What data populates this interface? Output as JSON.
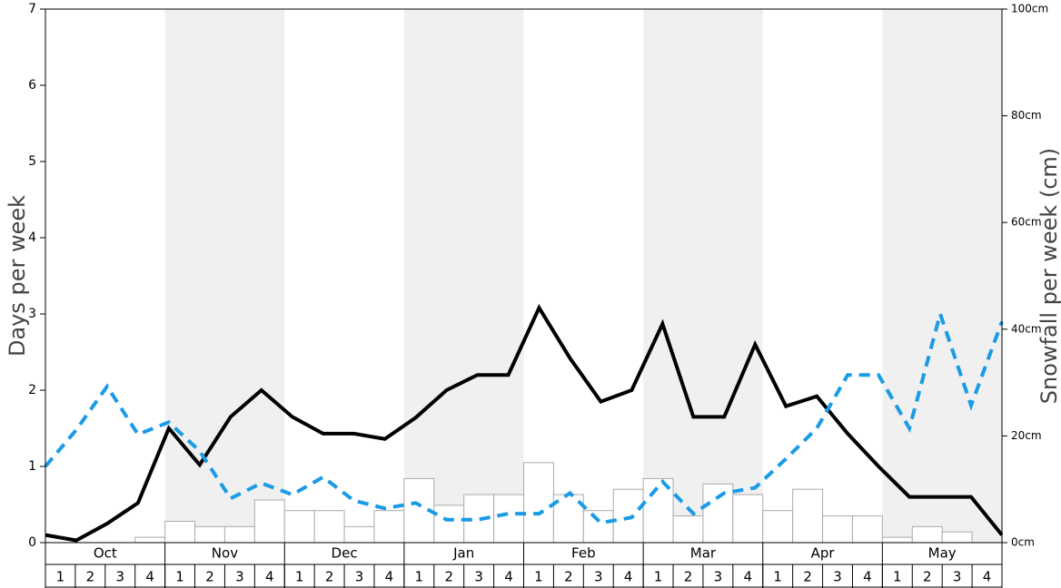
{
  "chart_data": {
    "type": "bar_line",
    "y_label": "Days per week",
    "y2_label": "Snowfall per week (cm)",
    "months": [
      "Oct",
      "Nov",
      "Dec",
      "Jan",
      "Feb",
      "Mar",
      "Apr",
      "May"
    ],
    "categories": [
      "1",
      "2",
      "3",
      "4",
      "1",
      "2",
      "3",
      "4",
      "1",
      "2",
      "3",
      "4",
      "1",
      "2",
      "3",
      "4",
      "1",
      "2",
      "3",
      "4",
      "1",
      "2",
      "3",
      "4",
      "1",
      "2",
      "3",
      "4",
      "1",
      "2",
      "3",
      "4"
    ],
    "ylim": [
      0,
      7
    ],
    "yticks": [
      0,
      1,
      2,
      3,
      4,
      5,
      6,
      7
    ],
    "y2lim": [
      0,
      100
    ],
    "y2ticks": [
      {
        "value": 0,
        "label": "0cm"
      },
      {
        "value": 20,
        "label": "20cm"
      },
      {
        "value": 40,
        "label": "40cm"
      },
      {
        "value": 60,
        "label": "60cm"
      },
      {
        "value": 80,
        "label": "80cm"
      },
      {
        "value": 100,
        "label": "100cm"
      }
    ],
    "series": [
      {
        "kind": "bar",
        "axis": "y2",
        "color": "#ffffff",
        "values": [
          0,
          0,
          0,
          1,
          4,
          3,
          3,
          8,
          6,
          6,
          3,
          6,
          12,
          7,
          9,
          9,
          15,
          9,
          6,
          10,
          12,
          5,
          11,
          9,
          6,
          10,
          5,
          5,
          1,
          3,
          2,
          0
        ]
      },
      {
        "kind": "line",
        "color": "#000000",
        "values": [
          0.1,
          0.03,
          0.25,
          0.52,
          1.5,
          1.02,
          1.65,
          2.0,
          1.65,
          1.43,
          1.43,
          1.36,
          1.64,
          2.0,
          2.2,
          2.2,
          3.08,
          2.42,
          1.85,
          2.0,
          2.87,
          1.65,
          1.65,
          2.6,
          1.79,
          1.92,
          1.43,
          1.0,
          0.6,
          0.6,
          0.6,
          0.1
        ]
      },
      {
        "kind": "dashed",
        "color": "#1a9be6",
        "values": [
          1.0,
          1.48,
          2.05,
          1.42,
          1.58,
          1.2,
          0.58,
          0.78,
          0.63,
          0.86,
          0.55,
          0.45,
          0.52,
          0.3,
          0.3,
          0.38,
          0.38,
          0.65,
          0.26,
          0.33,
          0.8,
          0.38,
          0.65,
          0.72,
          1.1,
          1.5,
          2.2,
          2.2,
          1.5,
          3.0,
          1.8,
          2.9
        ]
      }
    ]
  }
}
